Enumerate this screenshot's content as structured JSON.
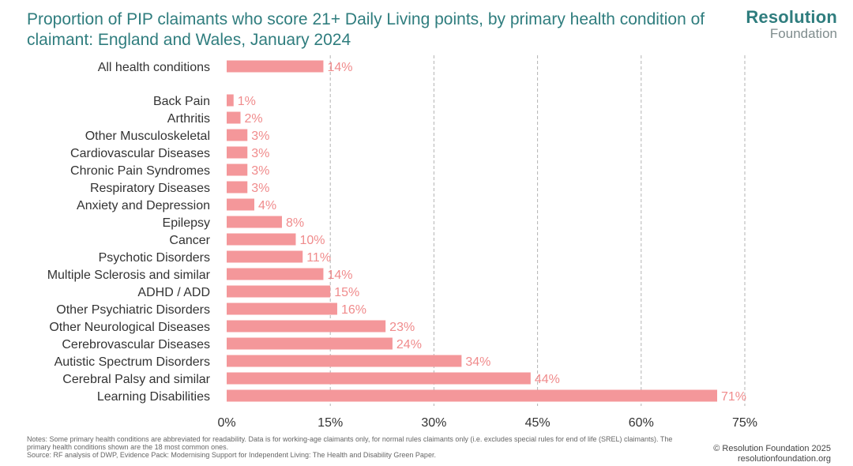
{
  "header": {
    "title": "Proportion of PIP claimants who score 21+ Daily Living points, by primary health condition of claimant: England and Wales, January 2024",
    "logo_top": "Resolution",
    "logo_bottom": "Foundation"
  },
  "footer": {
    "notes": "Notes: Some primary health conditions are abbreviated for readability. Data is for working-age claimants only, for normal rules claimants only (i.e. excludes special rules for end of life (SREL) claimants). The primary health conditions shown are the 18 most common ones.",
    "source": "Source: RF analysis of DWP, Evidence Pack: Modernising Support for Independent Living: The Health and Disability Green Paper.",
    "copyright": "© Resolution Foundation 2025",
    "website": "resolutionfoundation.org"
  },
  "colors": {
    "bar": "#f4979a",
    "value_label": "#f08b8c",
    "title": "#2f7d7e",
    "gridline": "#b3b3b3"
  },
  "chart_data": {
    "type": "bar",
    "orientation": "horizontal",
    "categories": [
      "All health conditions",
      "Back Pain",
      "Arthritis",
      "Other Musculoskeletal",
      "Cardiovascular Diseases",
      "Chronic Pain Syndromes",
      "Respiratory Diseases",
      "Anxiety and Depression",
      "Epilepsy",
      "Cancer",
      "Psychotic Disorders",
      "Multiple Sclerosis and similar",
      "ADHD / ADD",
      "Other Psychiatric Disorders",
      "Other Neurological Diseases",
      "Cerebrovascular Diseases",
      "Autistic Spectrum Disorders",
      "Cerebral Palsy and similar",
      "Learning Disabilities"
    ],
    "values": [
      14,
      1,
      2,
      3,
      3,
      3,
      3,
      4,
      8,
      10,
      11,
      14,
      15,
      16,
      23,
      24,
      34,
      44,
      71
    ],
    "value_labels": [
      "14%",
      "1%",
      "2%",
      "3%",
      "3%",
      "3%",
      "3%",
      "4%",
      "8%",
      "10%",
      "11%",
      "14%",
      "15%",
      "16%",
      "23%",
      "24%",
      "34%",
      "44%",
      "71%"
    ],
    "xlim": [
      0,
      75
    ],
    "xticks": [
      0,
      15,
      30,
      45,
      60,
      75
    ],
    "xtick_labels": [
      "0%",
      "15%",
      "30%",
      "45%",
      "60%",
      "75%"
    ],
    "grid": "vertical dashed",
    "legend": "none"
  }
}
